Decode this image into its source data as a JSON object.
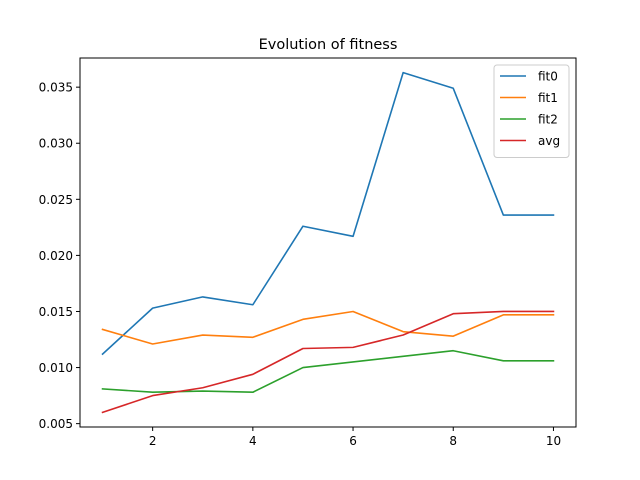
{
  "chart_data": {
    "type": "line",
    "title": "Evolution of fitness",
    "xlabel": "",
    "ylabel": "",
    "x": [
      1,
      2,
      3,
      4,
      5,
      6,
      7,
      8,
      9,
      10
    ],
    "xlim": [
      0.55,
      10.45
    ],
    "ylim": [
      0.0047,
      0.0376
    ],
    "xticks": [
      2,
      4,
      6,
      8,
      10
    ],
    "xtick_labels": [
      "2",
      "4",
      "6",
      "8",
      "10"
    ],
    "yticks": [
      0.005,
      0.01,
      0.015,
      0.02,
      0.025,
      0.03,
      0.035
    ],
    "ytick_labels": [
      "0.005",
      "0.010",
      "0.015",
      "0.020",
      "0.025",
      "0.030",
      "0.035"
    ],
    "grid": false,
    "legend_position": "top-right",
    "series": [
      {
        "name": "fit0",
        "color": "#1f77b4",
        "values": [
          0.0112,
          0.0153,
          0.0163,
          0.0156,
          0.0226,
          0.0217,
          0.0363,
          0.0349,
          0.0236,
          0.0236
        ]
      },
      {
        "name": "fit1",
        "color": "#ff7f0e",
        "values": [
          0.0134,
          0.0121,
          0.0129,
          0.0127,
          0.0143,
          0.015,
          0.0132,
          0.0128,
          0.0147,
          0.0147
        ]
      },
      {
        "name": "fit2",
        "color": "#2ca02c",
        "values": [
          0.0081,
          0.0078,
          0.0079,
          0.0078,
          0.01,
          0.0105,
          0.011,
          0.0115,
          0.0106,
          0.0106
        ]
      },
      {
        "name": "avg",
        "color": "#d62728",
        "values": [
          0.006,
          0.0075,
          0.0082,
          0.0094,
          0.0117,
          0.0118,
          0.0129,
          0.0148,
          0.015,
          0.015
        ]
      }
    ]
  }
}
